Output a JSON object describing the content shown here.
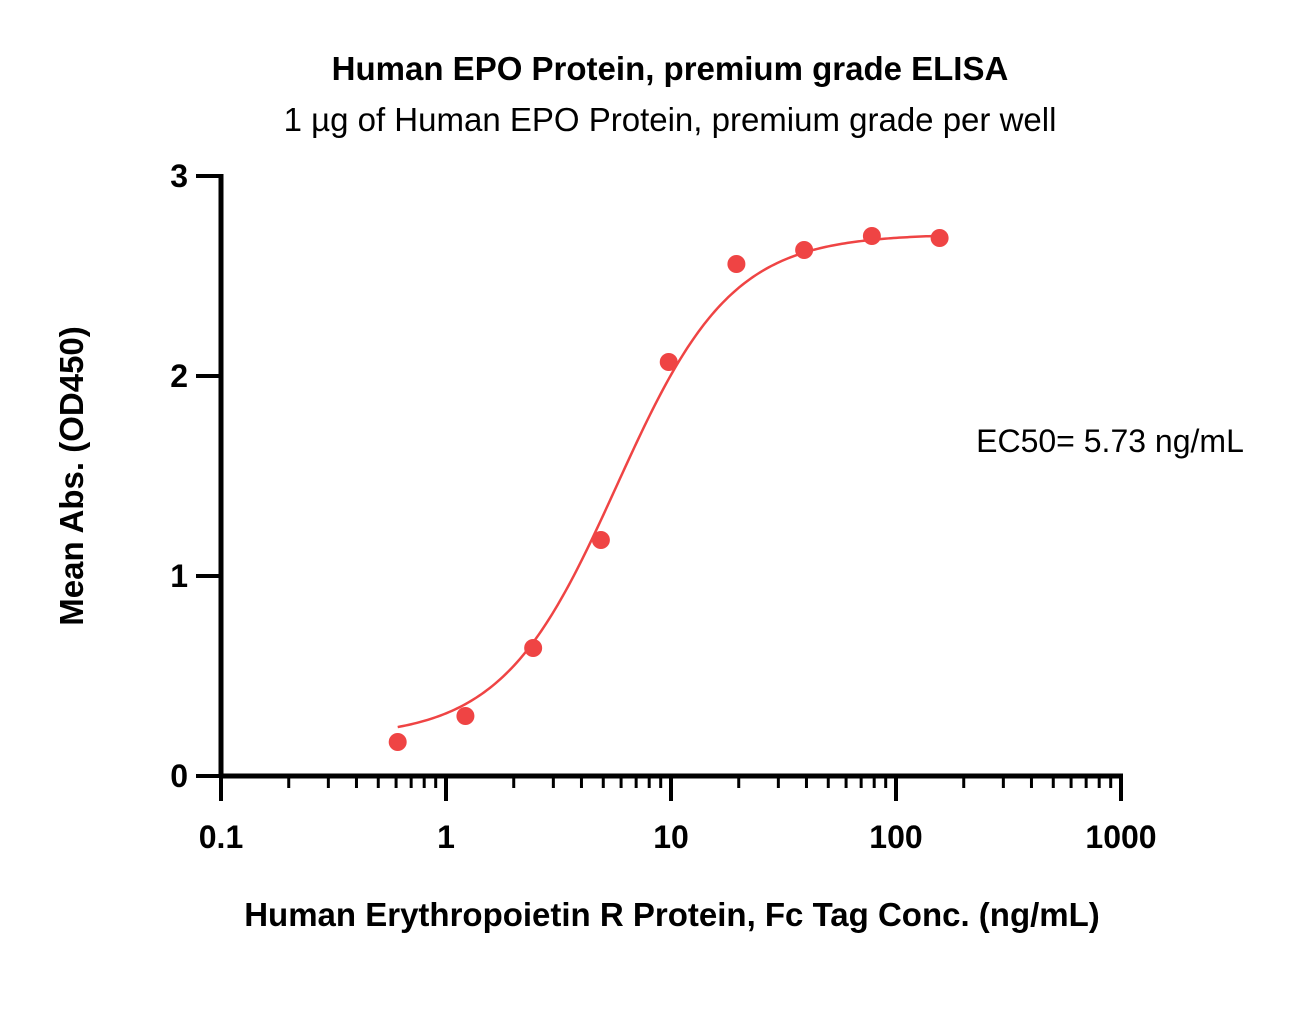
{
  "chart_data": {
    "type": "scatter",
    "title": "Human EPO Protein, premium grade ELISA",
    "subtitle": "1 µg of Human EPO Protein, premium grade per well",
    "xlabel": "Human Erythropoietin R Protein, Fc Tag Conc. (ng/mL)",
    "ylabel": "Mean Abs. (OD450)",
    "x_scale": "log",
    "xlim": [
      0.1,
      1000
    ],
    "ylim": [
      0,
      3
    ],
    "x_ticks": [
      "0.1",
      "1",
      "10",
      "100",
      "1000"
    ],
    "y_ticks": [
      "0",
      "1",
      "2",
      "3"
    ],
    "grid": false,
    "annotation": "EC50= 5.73 ng/mL",
    "point_color": "#ef4444",
    "curve_color": "#ef4444",
    "fit": {
      "model": "4PL sigmoid",
      "bottom": 0.19,
      "top": 2.71,
      "ec50": 5.73,
      "hill": 1.7
    },
    "series": [
      {
        "x": [
          0.61,
          1.22,
          2.44,
          4.88,
          9.77,
          19.53,
          39.06,
          78.13,
          156.25
        ],
        "y": [
          0.17,
          0.3,
          0.64,
          1.18,
          2.07,
          2.56,
          2.63,
          2.7,
          2.69
        ]
      }
    ]
  }
}
